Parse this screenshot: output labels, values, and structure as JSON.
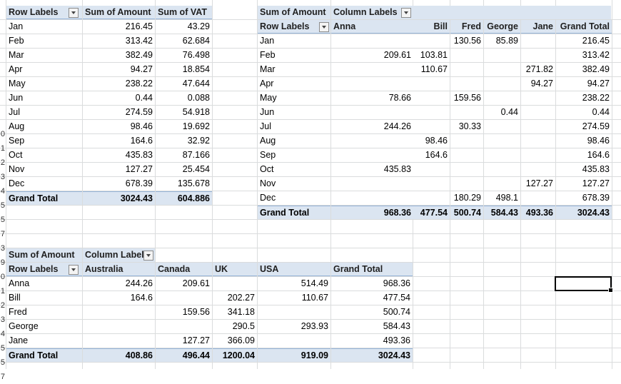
{
  "pivot1": {
    "headers": [
      "Row Labels",
      "Sum of Amount",
      "Sum of VAT"
    ],
    "rows": [
      [
        "Jan",
        "216.45",
        "43.29"
      ],
      [
        "Feb",
        "313.42",
        "62.684"
      ],
      [
        "Mar",
        "382.49",
        "76.498"
      ],
      [
        "Apr",
        "94.27",
        "18.854"
      ],
      [
        "May",
        "238.22",
        "47.644"
      ],
      [
        "Jun",
        "0.44",
        "0.088"
      ],
      [
        "Jul",
        "274.59",
        "54.918"
      ],
      [
        "Aug",
        "98.46",
        "19.692"
      ],
      [
        "Sep",
        "164.6",
        "32.92"
      ],
      [
        "Oct",
        "435.83",
        "87.166"
      ],
      [
        "Nov",
        "127.27",
        "25.454"
      ],
      [
        "Dec",
        "678.39",
        "135.678"
      ]
    ],
    "total": [
      "Grand Total",
      "3024.43",
      "604.886"
    ]
  },
  "pivot2": {
    "title": "Sum of Amount",
    "col_label": "Column Labels",
    "headers": [
      "Row Labels",
      "Anna",
      "Bill",
      "Fred",
      "George",
      "Jane",
      "Grand Total"
    ],
    "rows": [
      [
        "Jan",
        "",
        "",
        "130.56",
        "85.89",
        "",
        "216.45"
      ],
      [
        "Feb",
        "209.61",
        "103.81",
        "",
        "",
        "",
        "313.42"
      ],
      [
        "Mar",
        "",
        "110.67",
        "",
        "",
        "271.82",
        "382.49"
      ],
      [
        "Apr",
        "",
        "",
        "",
        "",
        "94.27",
        "94.27"
      ],
      [
        "May",
        "78.66",
        "",
        "159.56",
        "",
        "",
        "238.22"
      ],
      [
        "Jun",
        "",
        "",
        "",
        "0.44",
        "",
        "0.44"
      ],
      [
        "Jul",
        "244.26",
        "",
        "30.33",
        "",
        "",
        "274.59"
      ],
      [
        "Aug",
        "",
        "98.46",
        "",
        "",
        "",
        "98.46"
      ],
      [
        "Sep",
        "",
        "164.6",
        "",
        "",
        "",
        "164.6"
      ],
      [
        "Oct",
        "435.83",
        "",
        "",
        "",
        "",
        "435.83"
      ],
      [
        "Nov",
        "",
        "",
        "",
        "",
        "127.27",
        "127.27"
      ],
      [
        "Dec",
        "",
        "",
        "180.29",
        "498.1",
        "",
        "678.39"
      ]
    ],
    "total": [
      "Grand Total",
      "968.36",
      "477.54",
      "500.74",
      "584.43",
      "493.36",
      "3024.43"
    ]
  },
  "pivot3": {
    "title": "Sum of Amount",
    "col_label": "Column Label",
    "headers": [
      "Row Labels",
      "Australia",
      "Canada",
      "UK",
      "USA",
      "Grand Total"
    ],
    "rows": [
      [
        "Anna",
        "244.26",
        "209.61",
        "",
        "514.49",
        "968.36"
      ],
      [
        "Bill",
        "164.6",
        "",
        "202.27",
        "110.67",
        "477.54"
      ],
      [
        "Fred",
        "",
        "159.56",
        "341.18",
        "",
        "500.74"
      ],
      [
        "George",
        "",
        "",
        "290.5",
        "293.93",
        "584.43"
      ],
      [
        "Jane",
        "",
        "127.27",
        "366.09",
        "",
        "493.36"
      ]
    ],
    "total": [
      "Grand Total",
      "408.86",
      "496.44",
      "1200.04",
      "919.09",
      "3024.43"
    ]
  },
  "row_numbers": [
    "",
    "",
    "",
    "",
    "",
    "",
    "",
    "",
    "",
    "0",
    "1",
    "2",
    "3",
    "4",
    "5",
    "5",
    "7",
    "3",
    "9",
    "0",
    "1",
    "2",
    "3",
    "4",
    "5",
    "5",
    "7"
  ]
}
